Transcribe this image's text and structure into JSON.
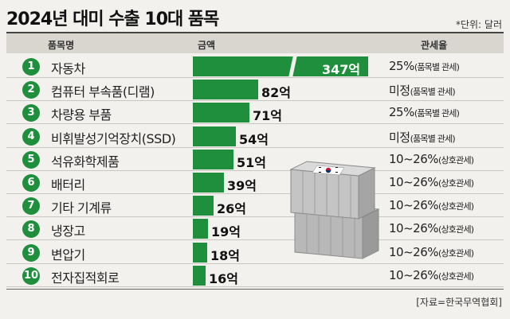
{
  "title": "2024년 대미 수출 10대 품목",
  "unit_note": "*단위: 달러",
  "source": "[자료=한국무역협회]",
  "header": {
    "item": "품목명",
    "amount": "금액",
    "tariff": "관세율"
  },
  "colors": {
    "bar": "#1f8f3d",
    "header_bg": "#d9d5cf",
    "background": "#f3f1ee"
  },
  "chart_data": {
    "type": "bar",
    "orientation": "horizontal",
    "unit": "억 달러",
    "categories": [
      "자동차",
      "컴퓨터 부속품(디램)",
      "차량용 부품",
      "비휘발성기억장치(SSD)",
      "석유화학제품",
      "배터리",
      "기타 기계류",
      "냉장고",
      "변압기",
      "전자집적회로"
    ],
    "values": [
      347,
      82,
      71,
      54,
      51,
      39,
      26,
      19,
      18,
      16
    ],
    "axis_break": true
  },
  "rows": [
    {
      "rank": "1",
      "name": "자동차",
      "value_label": "347억",
      "tariff_main": "25%",
      "tariff_note": "(품목별 관세)"
    },
    {
      "rank": "2",
      "name": "컴퓨터 부속품(디램)",
      "value_label": "82억",
      "tariff_main": "미정",
      "tariff_note": "(품목별 관세)"
    },
    {
      "rank": "3",
      "name": "차량용 부품",
      "value_label": "71억",
      "tariff_main": "25%",
      "tariff_note": "(품목별 관세)"
    },
    {
      "rank": "4",
      "name": "비휘발성기억장치(SSD)",
      "value_label": "54억",
      "tariff_main": "미정",
      "tariff_note": "(품목별 관세)"
    },
    {
      "rank": "5",
      "name": "석유화학제품",
      "value_label": "51억",
      "tariff_main": "10~26%",
      "tariff_note": "(상호관세)"
    },
    {
      "rank": "6",
      "name": "배터리",
      "value_label": "39억",
      "tariff_main": "10~26%",
      "tariff_note": "(상호관세)"
    },
    {
      "rank": "7",
      "name": "기타 기계류",
      "value_label": "26억",
      "tariff_main": "10~26%",
      "tariff_note": "(상호관세)"
    },
    {
      "rank": "8",
      "name": "냉장고",
      "value_label": "19억",
      "tariff_main": "10~26%",
      "tariff_note": "(상호관세)"
    },
    {
      "rank": "9",
      "name": "변압기",
      "value_label": "18억",
      "tariff_main": "10~26%",
      "tariff_note": "(상호관세)"
    },
    {
      "rank": "10",
      "name": "전자집적회로",
      "value_label": "16억",
      "tariff_main": "10~26%",
      "tariff_note": "(상호관세)"
    }
  ]
}
